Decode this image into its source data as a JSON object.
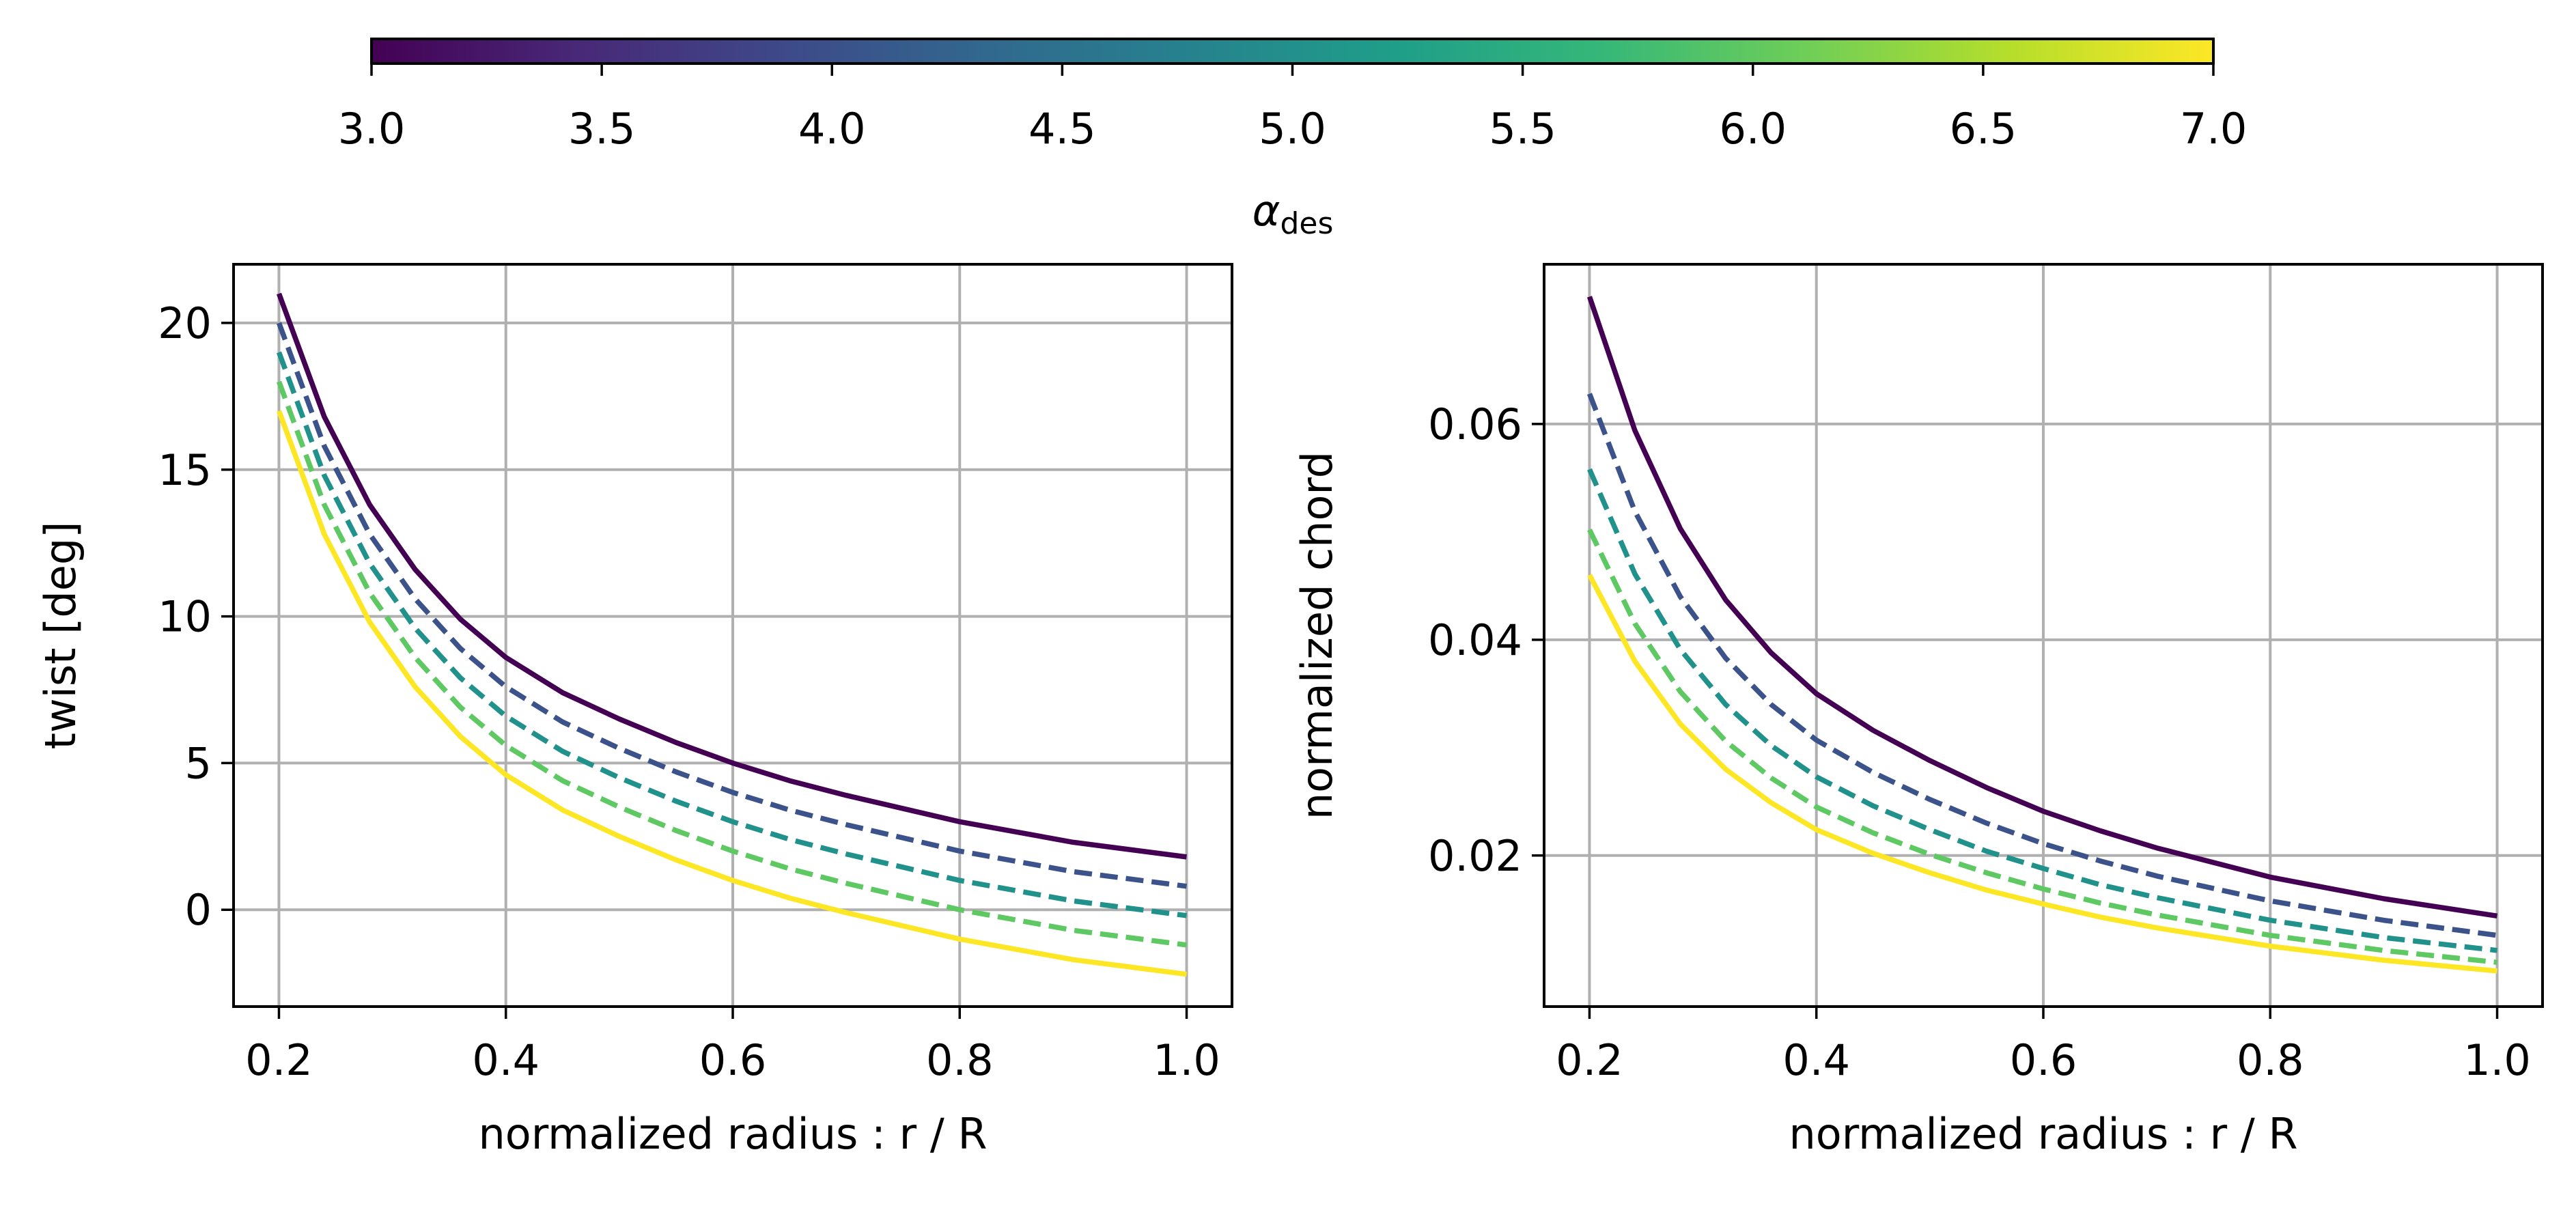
{
  "colorbar": {
    "label_symbol": "α",
    "label_subscript": "des",
    "ticks": [
      "3.0",
      "3.5",
      "4.0",
      "4.5",
      "5.0",
      "5.5",
      "6.0",
      "6.5",
      "7.0"
    ],
    "range": [
      3.0,
      7.0
    ],
    "colormap": [
      "#440154",
      "#482878",
      "#3e4989",
      "#31688e",
      "#26828e",
      "#1f9e89",
      "#35b779",
      "#6ece58",
      "#b5de2b",
      "#fde725"
    ]
  },
  "chart_data": [
    {
      "type": "line",
      "title": "",
      "xlabel": "normalized radius : r / R",
      "ylabel": "twist [deg]",
      "xlim": [
        0.16,
        1.04
      ],
      "ylim": [
        -3.3,
        22.0
      ],
      "grid": true,
      "xticks": [
        "0.2",
        "0.4",
        "0.6",
        "0.8",
        "1.0"
      ],
      "yticks": [
        "0",
        "5",
        "10",
        "15",
        "20"
      ],
      "x": [
        0.2,
        0.24,
        0.28,
        0.32,
        0.36,
        0.4,
        0.45,
        0.5,
        0.55,
        0.6,
        0.65,
        0.7,
        0.8,
        0.9,
        1.0
      ],
      "series": [
        {
          "alpha": 3.0,
          "color": "#440154",
          "dash": "solid",
          "values": [
            21.0,
            16.8,
            13.8,
            11.6,
            9.9,
            8.6,
            7.4,
            6.5,
            5.7,
            5.0,
            4.4,
            3.9,
            3.0,
            2.3,
            1.8
          ]
        },
        {
          "alpha": 4.0,
          "color": "#3b528b",
          "dash": "dashed",
          "values": [
            20.0,
            15.8,
            12.8,
            10.6,
            8.9,
            7.6,
            6.4,
            5.5,
            4.7,
            4.0,
            3.4,
            2.9,
            2.0,
            1.3,
            0.8
          ]
        },
        {
          "alpha": 5.0,
          "color": "#21918c",
          "dash": "dashed",
          "values": [
            19.0,
            14.8,
            11.8,
            9.6,
            7.9,
            6.6,
            5.4,
            4.5,
            3.7,
            3.0,
            2.4,
            1.9,
            1.0,
            0.3,
            -0.2
          ]
        },
        {
          "alpha": 6.0,
          "color": "#5ec962",
          "dash": "dashed",
          "values": [
            18.0,
            13.8,
            10.8,
            8.6,
            6.9,
            5.6,
            4.4,
            3.5,
            2.7,
            2.0,
            1.4,
            0.9,
            0.0,
            -0.7,
            -1.2
          ]
        },
        {
          "alpha": 7.0,
          "color": "#fde725",
          "dash": "solid",
          "values": [
            17.0,
            12.8,
            9.8,
            7.6,
            5.9,
            4.6,
            3.4,
            2.5,
            1.7,
            1.0,
            0.4,
            -0.1,
            -1.0,
            -1.7,
            -2.2
          ]
        }
      ]
    },
    {
      "type": "line",
      "title": "",
      "xlabel": "normalized radius : r / R",
      "ylabel": "normalized chord",
      "xlim": [
        0.16,
        1.04
      ],
      "ylim": [
        0.006,
        0.0748
      ],
      "grid": true,
      "xticks": [
        "0.2",
        "0.4",
        "0.6",
        "0.8",
        "1.0"
      ],
      "yticks": [
        "0.02",
        "0.04",
        "0.06"
      ],
      "x": [
        0.2,
        0.24,
        0.28,
        0.32,
        0.36,
        0.4,
        0.45,
        0.5,
        0.55,
        0.6,
        0.65,
        0.7,
        0.8,
        0.9,
        1.0
      ],
      "series": [
        {
          "alpha": 3.0,
          "color": "#440154",
          "dash": "solid",
          "values": [
            0.0718,
            0.0594,
            0.0503,
            0.0437,
            0.0388,
            0.035,
            0.0316,
            0.0288,
            0.0263,
            0.0241,
            0.0223,
            0.0207,
            0.018,
            0.016,
            0.0144
          ]
        },
        {
          "alpha": 4.0,
          "color": "#3b528b",
          "dash": "dashed",
          "values": [
            0.0628,
            0.0519,
            0.044,
            0.0383,
            0.034,
            0.0307,
            0.0277,
            0.0252,
            0.023,
            0.0211,
            0.0195,
            0.0181,
            0.0158,
            0.014,
            0.0126
          ]
        },
        {
          "alpha": 5.0,
          "color": "#21918c",
          "dash": "dashed",
          "values": [
            0.0558,
            0.0461,
            0.0391,
            0.034,
            0.0302,
            0.0273,
            0.0246,
            0.0224,
            0.0204,
            0.0188,
            0.0173,
            0.0161,
            0.014,
            0.0124,
            0.0112
          ]
        },
        {
          "alpha": 6.0,
          "color": "#5ec962",
          "dash": "dashed",
          "values": [
            0.0502,
            0.0415,
            0.0352,
            0.0306,
            0.0272,
            0.0245,
            0.0221,
            0.0201,
            0.0184,
            0.0169,
            0.0156,
            0.0145,
            0.0126,
            0.0112,
            0.0101
          ]
        },
        {
          "alpha": 7.0,
          "color": "#fde725",
          "dash": "solid",
          "values": [
            0.046,
            0.038,
            0.0322,
            0.028,
            0.0249,
            0.0224,
            0.0202,
            0.0184,
            0.0168,
            0.0155,
            0.0143,
            0.0133,
            0.0116,
            0.0103,
            0.0093
          ]
        }
      ]
    }
  ]
}
